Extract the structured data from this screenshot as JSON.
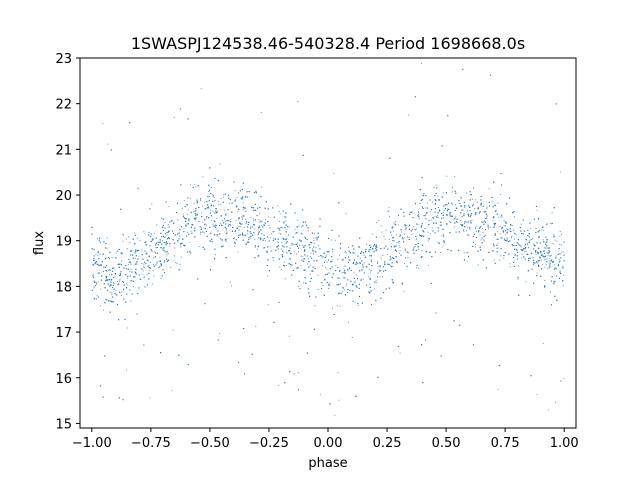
{
  "chart_data": {
    "type": "scatter",
    "title": "1SWASPJ124538.46-540328.4 Period 1698668.0s",
    "xlabel": "phase",
    "ylabel": "flux",
    "xlim": [
      -1.05,
      1.05
    ],
    "ylim": [
      14.9,
      23.0
    ],
    "xticks": [
      -1.0,
      -0.75,
      -0.5,
      -0.25,
      0.0,
      0.25,
      0.5,
      0.75,
      1.0
    ],
    "xtick_labels": [
      "−1.00",
      "−0.75",
      "−0.50",
      "−0.25",
      "0.00",
      "0.25",
      "0.50",
      "0.75",
      "1.00"
    ],
    "yticks": [
      15,
      16,
      17,
      18,
      19,
      20,
      21,
      22,
      23
    ],
    "ytick_labels": [
      "15",
      "16",
      "17",
      "18",
      "19",
      "20",
      "21",
      "22",
      "23"
    ],
    "grid": false,
    "marker_color": "#1f77b4",
    "series": [
      {
        "x": [
          -1.0,
          -0.95,
          -0.9,
          -0.85,
          -0.8,
          -0.75,
          -0.7,
          -0.65,
          -0.6,
          -0.55,
          -0.5,
          -0.45,
          -0.4,
          -0.35,
          -0.3,
          -0.25,
          -0.2,
          -0.15,
          -0.1,
          -0.05,
          0.0,
          0.05,
          0.1,
          0.15,
          0.2,
          0.25,
          0.3,
          0.35,
          0.4,
          0.45,
          0.5,
          0.55,
          0.6,
          0.65,
          0.7,
          0.75,
          0.8,
          0.85,
          0.9,
          0.95,
          1.0
        ],
        "y": [
          18.6,
          18.3,
          18.2,
          18.3,
          18.5,
          18.7,
          18.9,
          19.1,
          19.4,
          19.6,
          19.6,
          19.5,
          19.5,
          19.4,
          19.3,
          19.2,
          19.0,
          18.9,
          18.8,
          18.6,
          18.5,
          18.3,
          18.2,
          18.3,
          18.5,
          18.7,
          18.9,
          19.1,
          19.4,
          19.6,
          19.6,
          19.5,
          19.5,
          19.4,
          19.3,
          19.2,
          19.0,
          18.9,
          18.8,
          18.6,
          18.6
        ]
      }
    ]
  }
}
